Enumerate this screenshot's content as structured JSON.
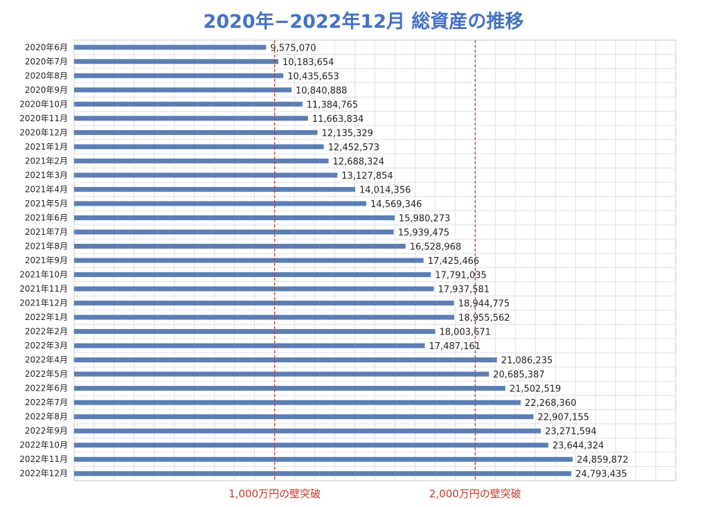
{
  "colors": {
    "bar": "#5b7fb5",
    "title": "#4472c4",
    "reference_line": "#c0392b",
    "grid": "#e0e0e0"
  },
  "chart_data": {
    "type": "bar",
    "orientation": "horizontal",
    "title": "2020年−2022年12月 総資産の推移",
    "xlabel": "",
    "ylabel": "",
    "xlim": [
      0,
      30000000
    ],
    "grid": true,
    "categories": [
      "2020年6月",
      "2020年7月",
      "2020年8月",
      "2020年9月",
      "2020年10月",
      "2020年11月",
      "2020年12月",
      "2021年1月",
      "2021年2月",
      "2021年3月",
      "2021年4月",
      "2021年5月",
      "2021年6月",
      "2021年7月",
      "2021年8月",
      "2021年9月",
      "2021年10月",
      "2021年11月",
      "2021年12月",
      "2022年1月",
      "2022年2月",
      "2022年3月",
      "2022年4月",
      "2022年5月",
      "2022年6月",
      "2022年7月",
      "2022年8月",
      "2022年9月",
      "2022年10月",
      "2022年11月",
      "2022年12月"
    ],
    "values": [
      9575070,
      10183654,
      10435653,
      10840888,
      11384765,
      11663834,
      12135329,
      12452573,
      12688324,
      13127854,
      14014356,
      14569346,
      15980273,
      15939475,
      16528968,
      17425466,
      17791035,
      17937581,
      18944775,
      18955562,
      18003671,
      17487161,
      21086235,
      20685387,
      21502519,
      22268360,
      22907155,
      23271594,
      23644324,
      24859872,
      24793435
    ],
    "value_labels": [
      "9,575,070",
      "10,183,654",
      "10,435,653",
      "10,840,888",
      "11,384,765",
      "11,663,834",
      "12,135,329",
      "12,452,573",
      "12,688,324",
      "13,127,854",
      "14,014,356",
      "14,569,346",
      "15,980,273",
      "15,939,475",
      "16,528,968",
      "17,425,466",
      "17,791,035",
      "17,937,581",
      "18,944,775",
      "18,955,562",
      "18,003,671",
      "17,487,161",
      "21,086,235",
      "20,685,387",
      "21,502,519",
      "22,268,360",
      "22,907,155",
      "23,271,594",
      "23,644,324",
      "24,859,872",
      "24,793,435"
    ],
    "reference_lines": [
      {
        "value": 10000000,
        "label": "1,000万円の壁突破"
      },
      {
        "value": 20000000,
        "label": "2,000万円の壁突破"
      }
    ]
  }
}
